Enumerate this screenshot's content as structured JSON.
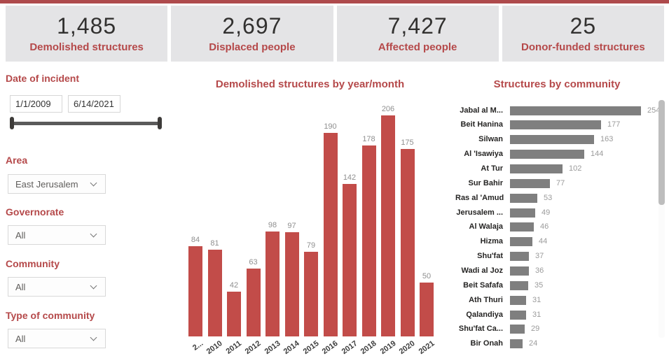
{
  "cards": [
    {
      "value": "1,485",
      "label": "Demolished structures"
    },
    {
      "value": "2,697",
      "label": "Displaced people"
    },
    {
      "value": "7,427",
      "label": "Affected people"
    },
    {
      "value": "25",
      "label": "Donor-funded structures"
    }
  ],
  "filters": {
    "date_label": "Date of incident",
    "date_start": "1/1/2009",
    "date_end": "6/14/2021",
    "area_label": "Area",
    "area_value": "East Jerusalem",
    "governorate_label": "Governorate",
    "governorate_value": "All",
    "community_label": "Community",
    "community_value": "All",
    "type_label": "Type of community",
    "type_value": "All"
  },
  "chart_data": [
    {
      "type": "bar",
      "title": "Demolished structures by year/month",
      "categories": [
        "2...",
        "2010",
        "2011",
        "2012",
        "2013",
        "2014",
        "2015",
        "2016",
        "2017",
        "2018",
        "2019",
        "2020",
        "2021"
      ],
      "values": [
        84,
        81,
        42,
        63,
        98,
        97,
        79,
        190,
        142,
        178,
        206,
        175,
        50
      ],
      "xlabel": "",
      "ylabel": "",
      "ylim": [
        0,
        206
      ],
      "grid": false,
      "value_labels": true,
      "legend": false
    },
    {
      "type": "bar",
      "orientation": "horizontal",
      "title": "Structures by community",
      "categories": [
        "Jabal al M...",
        "Beit Hanina",
        "Silwan",
        "Al 'Isawiya",
        "At Tur",
        "Sur Bahir",
        "Ras al 'Amud",
        "Jerusalem ...",
        "Al Walaja",
        "Hizma",
        "Shu'fat",
        "Wadi al Joz",
        "Beit Safafa",
        "Ath Thuri",
        "Qalandiya",
        "Shu'fat Ca...",
        "Bir Onah"
      ],
      "values": [
        254,
        177,
        163,
        144,
        102,
        77,
        53,
        49,
        46,
        44,
        37,
        36,
        35,
        31,
        31,
        29,
        24
      ],
      "xlim": [
        0,
        254
      ],
      "grid": false,
      "value_labels": true,
      "legend": false,
      "scrollbar": true
    }
  ],
  "colors": {
    "topbar": "#ae4a4c",
    "card_bg": "#e4e4e6",
    "number": "#323130",
    "accent_red": "#b5494a",
    "bar_red": "#c24c49",
    "bar_gray": "#7f7f7f"
  }
}
